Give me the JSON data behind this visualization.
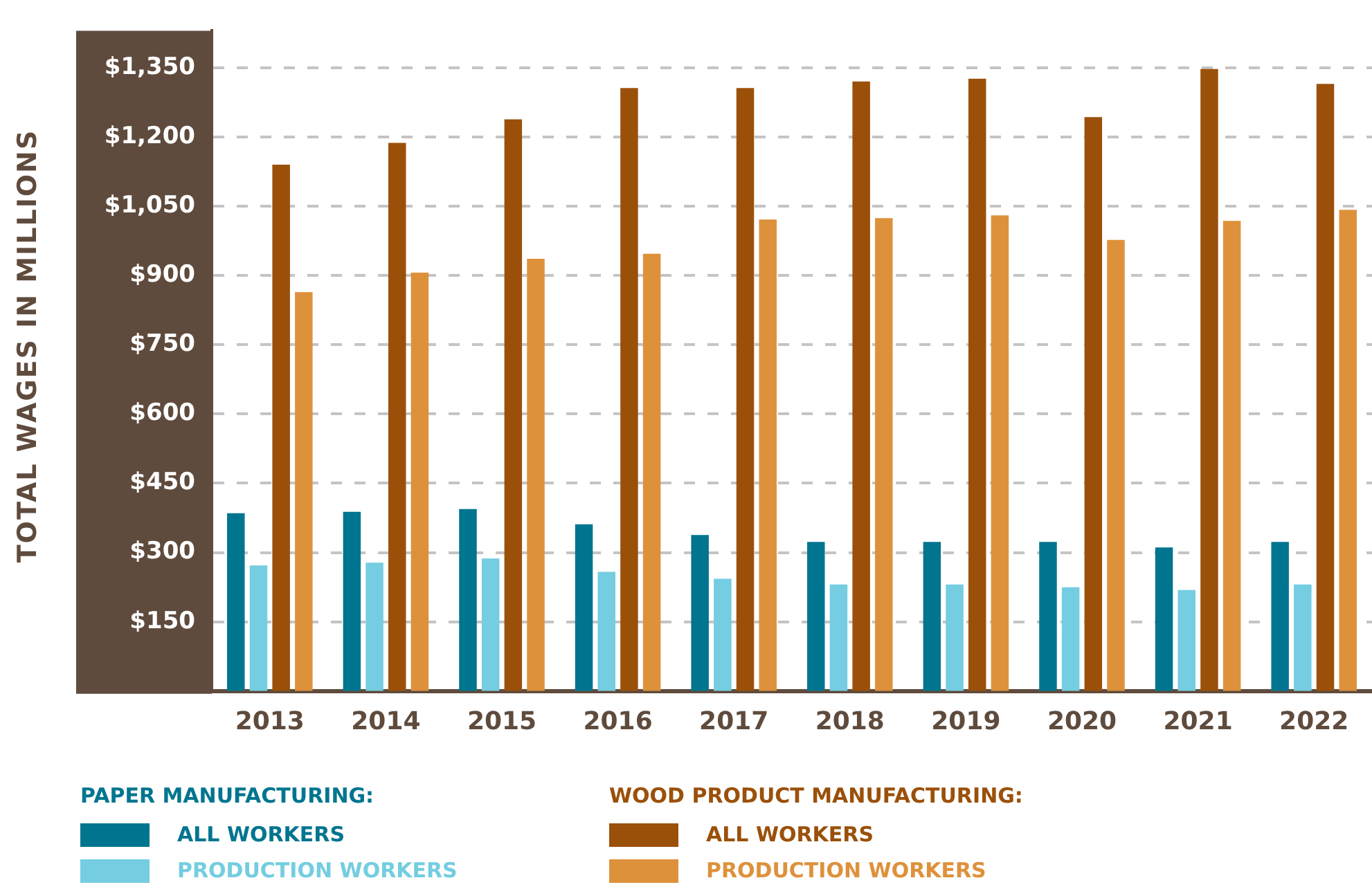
{
  "chart_data": {
    "type": "bar",
    "ylabel": "TOTAL WAGES IN MILLIONS",
    "categories": [
      "2013",
      "2014",
      "2015",
      "2016",
      "2017",
      "2018",
      "2019",
      "2020",
      "2021",
      "2022"
    ],
    "series": [
      {
        "name": "ALL WORKERS",
        "color": "#00758f",
        "values": [
          385,
          388,
          394,
          361,
          338,
          323,
          323,
          323,
          311,
          323
        ]
      },
      {
        "name": "PRODUCTION WORKERS",
        "color": "#74cde0",
        "values": [
          272,
          278,
          287,
          258,
          243,
          231,
          231,
          225,
          219,
          231
        ]
      },
      {
        "name": "ALL WORKERS",
        "color": "#9b500a",
        "values": [
          1140,
          1187,
          1238,
          1306,
          1306,
          1320,
          1326,
          1243,
          1347,
          1315
        ]
      },
      {
        "name": "PRODUCTION WORKERS",
        "color": "#de913b",
        "values": [
          864,
          906,
          936,
          947,
          1021,
          1024,
          1030,
          977,
          1018,
          1042
        ]
      }
    ],
    "annotations": [
      "PAPER MANUFACTURING:",
      "WOOD PRODUCT MANUFACTURING:"
    ],
    "ylim": [
      0,
      1430
    ],
    "yticks": [
      {
        "value": 150,
        "label": "$150"
      },
      {
        "value": 300,
        "label": "$300"
      },
      {
        "value": 450,
        "label": "$450"
      },
      {
        "value": 600,
        "label": "$600"
      },
      {
        "value": 750,
        "label": "$750"
      },
      {
        "value": 900,
        "label": "$900"
      },
      {
        "value": 1050,
        "label": "$1,050"
      },
      {
        "value": 1200,
        "label": "$1,200"
      },
      {
        "value": 1350,
        "label": "$1,350"
      }
    ],
    "grid": "y",
    "legend": "bottom"
  }
}
